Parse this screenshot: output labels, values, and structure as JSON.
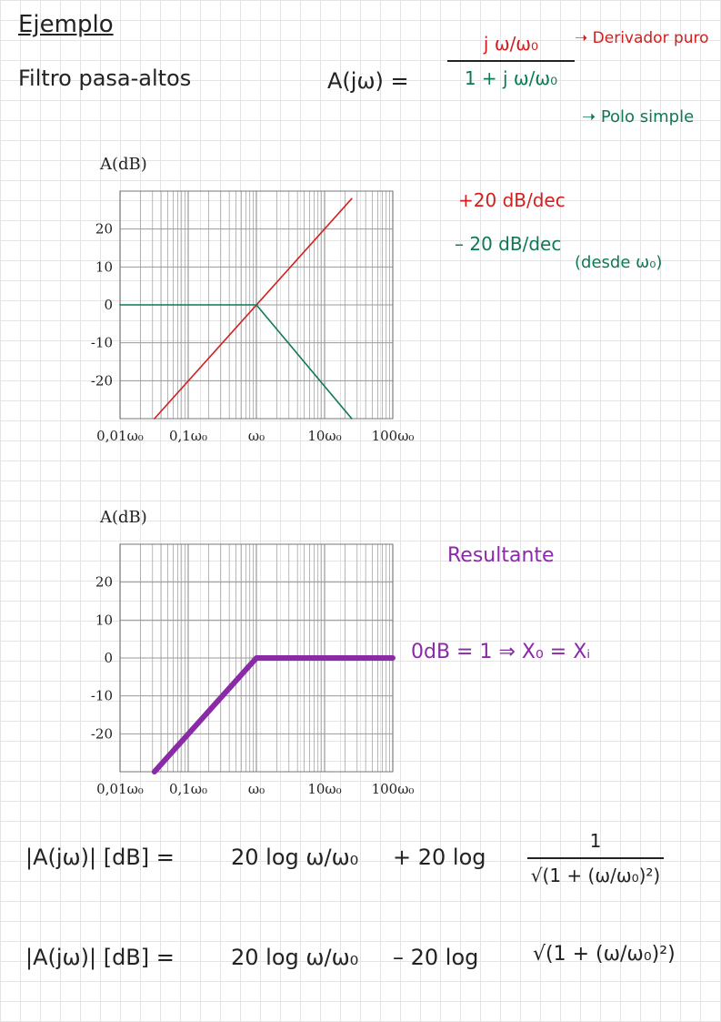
{
  "notes": {
    "title": "Ejemplo",
    "subtitle": "Filtro pasa-altos",
    "transfer_lhs": "A(jω) =",
    "numerator": "j ω/ω₀",
    "denominator": "1 + j ω/ω₀",
    "annot_derivador": "Derivador puro",
    "annot_polo": "Polo simple",
    "slope_pos": "+20 dB/dec",
    "slope_neg": "– 20 dB/dec",
    "slope_neg_note": "(desde ω₀)",
    "resultante": "Resultante",
    "odb": "0dB = 1  ⇒  X₀ = Xᵢ",
    "eq1_lhs": "|A(jω)| [dB] =",
    "eq1_term1": "20 log ω/ω₀",
    "eq1_plus": "+ 20 log",
    "eq1_frac_num": "1",
    "eq1_frac_den": "√(1 + (ω/ω₀)²)",
    "eq2_lhs": "|A(jω)| [dB] =",
    "eq2_term1": "20 log ω/ω₀",
    "eq2_minus": "– 20 log",
    "eq2_sqrt": "√(1 + (ω/ω₀)²)"
  },
  "colors": {
    "red": "#d21e1e",
    "green": "#0f7a52",
    "purple": "#8a2aa6",
    "grid": "#9a9a9a",
    "ink": "#222222"
  },
  "chart_data": [
    {
      "type": "line",
      "title": "",
      "ylabel": "A(dB)",
      "xlabel": "",
      "x_scale": "log",
      "xlim": [
        0.01,
        100
      ],
      "ylim": [
        -30,
        30
      ],
      "x_tick_labels": [
        "0,01ω₀",
        "0,1ω₀",
        "ω₀",
        "10ω₀",
        "100ω₀"
      ],
      "y_tick_labels": [
        "20",
        "10",
        "0",
        "-10",
        "-20"
      ],
      "grid": true,
      "series": [
        {
          "color": "#d21e1e",
          "x": [
            0.032,
            25
          ],
          "y": [
            -30,
            28
          ]
        },
        {
          "color": "#0f7a52",
          "x": [
            0.01,
            1,
            25
          ],
          "y": [
            0,
            0,
            -30
          ]
        }
      ]
    },
    {
      "type": "line",
      "title": "",
      "ylabel": "A(dB)",
      "xlabel": "",
      "x_scale": "log",
      "xlim": [
        0.01,
        100
      ],
      "ylim": [
        -30,
        30
      ],
      "x_tick_labels": [
        "0,01ω₀",
        "0,1ω₀",
        "ω₀",
        "10ω₀",
        "100ω₀"
      ],
      "y_tick_labels": [
        "20",
        "10",
        "0",
        "-10",
        "-20"
      ],
      "grid": true,
      "series": [
        {
          "color": "#8a2aa6",
          "x": [
            0.032,
            1,
            100
          ],
          "y": [
            -30,
            0,
            0
          ]
        }
      ]
    }
  ]
}
